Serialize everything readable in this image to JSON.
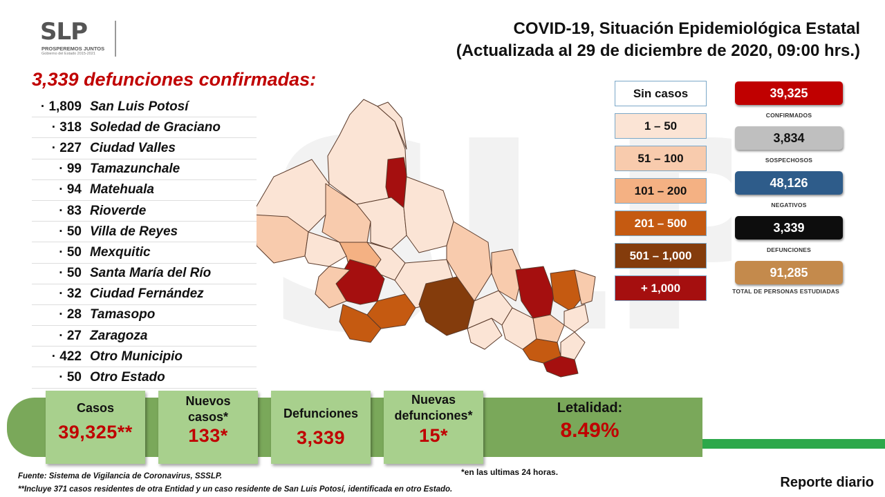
{
  "watermark": "SLP",
  "logo": {
    "mark": "SLP",
    "line1": "PROSPEREMOS JUNTOS",
    "line2": "Gobierno del Estado 2015-2021"
  },
  "header": {
    "title_line1": "COVID-19, Situación Epidemiológica Estatal",
    "title_line2": "(Actualizada al 29 de diciembre de 2020, 09:00 hrs.)"
  },
  "deaths": {
    "heading": "3,339 defunciones confirmadas:",
    "items": [
      {
        "count": "· 1,809",
        "place": "San Luis Potosí"
      },
      {
        "count": "· 318",
        "place": "Soledad de Graciano"
      },
      {
        "count": "· 227",
        "place": "Ciudad Valles"
      },
      {
        "count": "· 99",
        "place": "Tamazunchale"
      },
      {
        "count": "· 94",
        "place": "Matehuala"
      },
      {
        "count": "· 83",
        "place": "Rioverde"
      },
      {
        "count": "· 50",
        "place": "Villa de Reyes"
      },
      {
        "count": "· 50",
        "place": "Mexquitic"
      },
      {
        "count": "· 50",
        "place": "Santa María del Río"
      },
      {
        "count": "· 32",
        "place": "Ciudad Fernández"
      },
      {
        "count": "· 28",
        "place": "Tamasopo"
      },
      {
        "count": "· 27",
        "place": "Zaragoza"
      },
      {
        "count": "· 422",
        "place": "Otro Municipio"
      },
      {
        "count": "· 50",
        "place": "Otro Estado"
      }
    ]
  },
  "legend": [
    {
      "label": "Sin casos",
      "color": "#ffffff",
      "text": "#111111"
    },
    {
      "label": "1 – 50",
      "color": "#fbe4d5",
      "text": "#111111"
    },
    {
      "label": "51 – 100",
      "color": "#f8cbad",
      "text": "#111111"
    },
    {
      "label": "101 – 200",
      "color": "#f4b183",
      "text": "#111111"
    },
    {
      "label": "201 – 500",
      "color": "#c55a11",
      "text": "#ffffff"
    },
    {
      "label": "501 – 1,000",
      "color": "#843c0c",
      "text": "#ffffff"
    },
    {
      "label": "+ 1,000",
      "color": "#a50f0f",
      "text": "#ffffff"
    }
  ],
  "stats": [
    {
      "value": "39,325",
      "label": "CONFIRMADOS",
      "bg": "#c00000",
      "fg": "#ffffff"
    },
    {
      "value": "3,834",
      "label": "SOSPECHOSOS",
      "bg": "#bfbfbf",
      "fg": "#111111"
    },
    {
      "value": "48,126",
      "label": "NEGATIVOS",
      "bg": "#2e5c8a",
      "fg": "#ffffff"
    },
    {
      "value": "3,339",
      "label": "DEFUNCIONES",
      "bg": "#0d0d0d",
      "fg": "#ffffff"
    },
    {
      "value": "91,285",
      "label": "TOTAL DE PERSONAS ESTUDIADAS",
      "bg": "#c48a4c",
      "fg": "#ffffff"
    }
  ],
  "summary": {
    "casos_label": "Casos",
    "casos_value": "39,325**",
    "nuevos_label": "Nuevos casos*",
    "nuevos_value": "133*",
    "defunciones_label": "Defunciones",
    "defunciones_value": "3,339",
    "nuevas_def_label": "Nuevas defunciones*",
    "nuevas_def_value": "15*",
    "letalidad_label": "Letalidad:",
    "letalidad_value": "8.49%"
  },
  "footer": {
    "note_24h": "*en las ultimas 24 horas.",
    "source": "Fuente: Sistema de Vigilancia de Coronavirus, SSSLP.",
    "footnote": "**Incluye 371 casos residentes de otra Entidad y un caso residente de San Luis Potosí, identificada en otro Estado.",
    "report": "Reporte diario"
  }
}
